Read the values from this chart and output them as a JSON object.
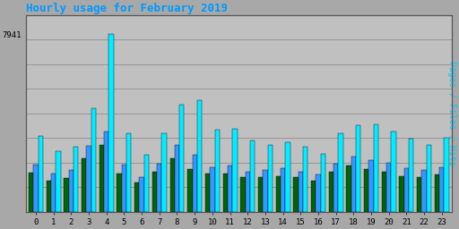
{
  "title": "Hourly usage for February 2019",
  "ylabel_right": "Pages / Files / Hits",
  "ytick_label": "7941",
  "hours": [
    0,
    1,
    2,
    3,
    4,
    5,
    6,
    7,
    8,
    9,
    10,
    11,
    12,
    13,
    14,
    15,
    16,
    17,
    18,
    19,
    20,
    21,
    22,
    23
  ],
  "pages": [
    1750,
    1400,
    1500,
    2400,
    3000,
    1700,
    1300,
    1800,
    2400,
    1900,
    1700,
    1700,
    1550,
    1550,
    1600,
    1550,
    1400,
    1800,
    2050,
    1900,
    1800,
    1600,
    1550,
    1650
  ],
  "files": [
    2100,
    1700,
    1850,
    2950,
    3600,
    2100,
    1550,
    2150,
    3000,
    2550,
    2000,
    2050,
    1800,
    1850,
    1950,
    1800,
    1650,
    2150,
    2450,
    2300,
    2200,
    1950,
    1850,
    2000
  ],
  "hits": [
    3400,
    2700,
    2900,
    4650,
    7941,
    3500,
    2550,
    3500,
    4800,
    5000,
    3650,
    3700,
    3200,
    3000,
    3100,
    2900,
    2600,
    3500,
    3850,
    3900,
    3600,
    3250,
    3000,
    3300
  ],
  "color_pages": "#006600",
  "color_files": "#3399ff",
  "color_hits": "#00eeff",
  "color_border": "#000033",
  "background_color": "#a8a8a8",
  "plot_bg_color": "#c0c0c0",
  "title_color": "#0099ff",
  "ylabel_color": "#00ccff",
  "grid_color": "#909090",
  "ylim_max": 8800,
  "bar_width": 0.27,
  "n_gridlines": 8
}
